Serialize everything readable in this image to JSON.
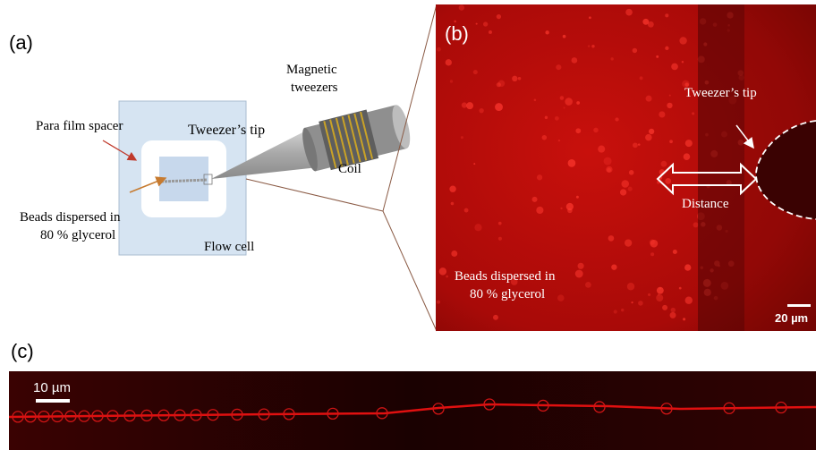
{
  "panel_a": {
    "label": "(a)",
    "magnetic_tweezers": [
      "Magnetic",
      "tweezers"
    ],
    "spacer": "Para film spacer",
    "tip": "Tweezer’s tip",
    "coil": "Coil",
    "beads": [
      "Beads dispersed in",
      "80 % glycerol"
    ],
    "flow_cell": "Flow cell"
  },
  "panel_b": {
    "label": "(b)",
    "tip": "Tweezer’s tip",
    "distance": "Distance",
    "beads": [
      "Beads dispersed in",
      "80 % glycerol"
    ],
    "scale_bar": "20 µm"
  },
  "panel_c": {
    "label": "(c)",
    "scale_bar": "10 µm"
  }
}
